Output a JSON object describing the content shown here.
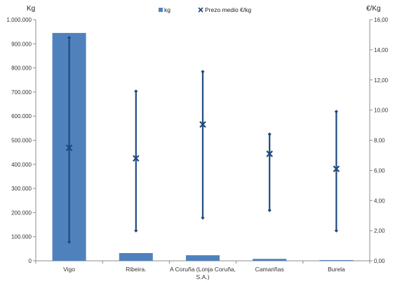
{
  "chart_data": {
    "type": "bar",
    "title": "",
    "categories": [
      [
        "Vigo"
      ],
      [
        "Ribeira."
      ],
      [
        "A Coruña (Lonja Coruña,",
        "S.A.)"
      ],
      [
        "Camariñas"
      ],
      [
        "Burela"
      ]
    ],
    "y_left": {
      "label": "Kg",
      "range": [
        0,
        1000000
      ],
      "ticks": [
        "0",
        "100.000",
        "200.000",
        "300.000",
        "400.000",
        "500.000",
        "600.000",
        "700.000",
        "800.000",
        "900.000",
        "1.000.000"
      ]
    },
    "y_right": {
      "label": "€/Kg",
      "range": [
        0,
        16
      ],
      "ticks": [
        "0,00",
        "2,00",
        "4,00",
        "6,00",
        "8,00",
        "10,00",
        "12,00",
        "14,00",
        "16,00"
      ]
    },
    "series": [
      {
        "name": "kg",
        "kind": "bar",
        "axis": "left",
        "color": "#4F81BD",
        "values": [
          945000,
          32000,
          23000,
          8000,
          3000
        ]
      },
      {
        "name": "Prezo medio €/kg",
        "kind": "marker",
        "axis": "right",
        "color": "#1F497D",
        "values": [
          7.5,
          6.8,
          9.05,
          7.1,
          6.1
        ],
        "min": [
          1.25,
          2.0,
          2.85,
          3.35,
          2.0
        ],
        "max": [
          14.8,
          11.25,
          12.55,
          8.4,
          9.9
        ]
      }
    ],
    "legend_position": "top-center",
    "grid": false
  }
}
